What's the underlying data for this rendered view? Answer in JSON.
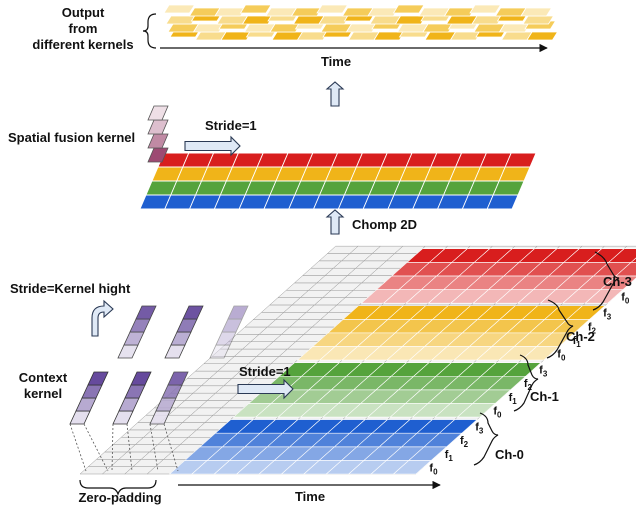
{
  "labels": {
    "output": [
      "Output",
      "from",
      "different kernels"
    ],
    "time_top": "Time",
    "spatial_fusion": "Spatial fusion kernel",
    "stride_top": "Stride=1",
    "chomp": "Chomp 2D",
    "stride_kernel": "Stride=Kernel hight",
    "context": [
      "Context",
      "kernel"
    ],
    "stride_mid": "Stride=1",
    "zero_padding": "Zero-padding",
    "time_bottom": "Time"
  },
  "channels": [
    {
      "name": "Ch-0",
      "color": "#1f5fd0"
    },
    {
      "name": "Ch-1",
      "color": "#55a33c"
    },
    {
      "name": "Ch-2",
      "color": "#f0b419"
    },
    {
      "name": "Ch-3",
      "color": "#d81e1e"
    }
  ],
  "features": [
    {
      "base": "f",
      "sub": "0"
    },
    {
      "base": "f",
      "sub": "1"
    },
    {
      "base": "f",
      "sub": "2"
    },
    {
      "base": "f",
      "sub": "3"
    }
  ],
  "colors": {
    "kernel_purple": "#4b2a8c",
    "fusion_magenta": "#8c2a5a",
    "grid_gray": "#dcdcdc",
    "arrow_fill": "#dfe9f6",
    "arrow_stroke": "#2b3a55"
  }
}
